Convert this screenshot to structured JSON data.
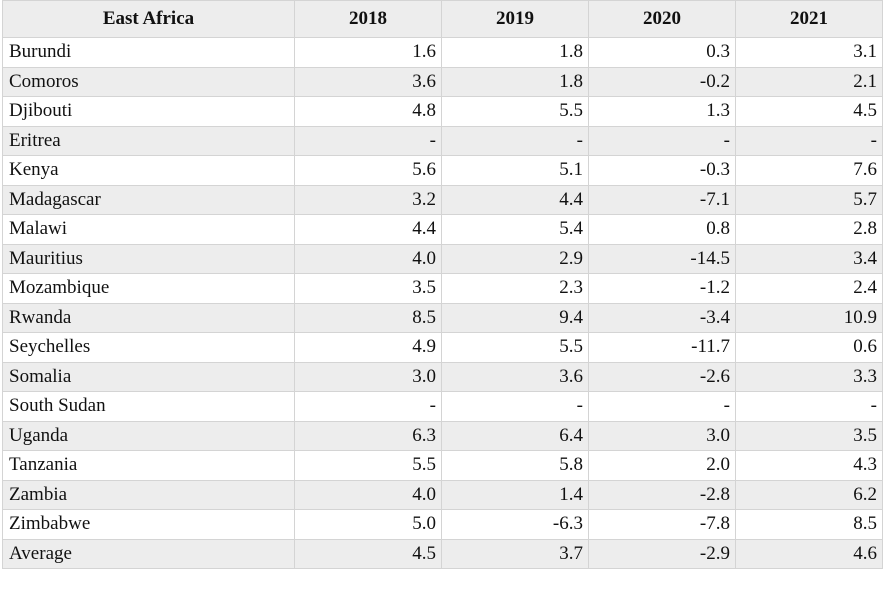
{
  "table": {
    "headers": [
      "East Africa",
      "2018",
      "2019",
      "2020",
      "2021"
    ],
    "rows": [
      {
        "country": "Burundi",
        "values": [
          "1.6",
          "1.8",
          "0.3",
          "3.1"
        ]
      },
      {
        "country": "Comoros",
        "values": [
          "3.6",
          "1.8",
          "-0.2",
          "2.1"
        ]
      },
      {
        "country": "Djibouti",
        "values": [
          "4.8",
          "5.5",
          "1.3",
          "4.5"
        ]
      },
      {
        "country": "Eritrea",
        "values": [
          "-",
          "-",
          "-",
          "-"
        ]
      },
      {
        "country": "Kenya",
        "values": [
          "5.6",
          "5.1",
          "-0.3",
          "7.6"
        ]
      },
      {
        "country": "Madagascar",
        "values": [
          "3.2",
          "4.4",
          "-7.1",
          "5.7"
        ]
      },
      {
        "country": "Malawi",
        "values": [
          "4.4",
          "5.4",
          "0.8",
          "2.8"
        ]
      },
      {
        "country": "Mauritius",
        "values": [
          "4.0",
          "2.9",
          "-14.5",
          "3.4"
        ]
      },
      {
        "country": "Mozambique",
        "values": [
          "3.5",
          "2.3",
          "-1.2",
          "2.4"
        ]
      },
      {
        "country": "Rwanda",
        "values": [
          "8.5",
          "9.4",
          "-3.4",
          "10.9"
        ]
      },
      {
        "country": "Seychelles",
        "values": [
          "4.9",
          "5.5",
          "-11.7",
          "0.6"
        ]
      },
      {
        "country": "Somalia",
        "values": [
          "3.0",
          "3.6",
          "-2.6",
          "3.3"
        ]
      },
      {
        "country": "South Sudan",
        "values": [
          "-",
          "-",
          "-",
          "-"
        ]
      },
      {
        "country": "Uganda",
        "values": [
          "6.3",
          "6.4",
          "3.0",
          "3.5"
        ]
      },
      {
        "country": "Tanzania",
        "values": [
          "5.5",
          "5.8",
          "2.0",
          "4.3"
        ]
      },
      {
        "country": "Zambia",
        "values": [
          "4.0",
          "1.4",
          "-2.8",
          "6.2"
        ]
      },
      {
        "country": "Zimbabwe",
        "values": [
          "5.0",
          "-6.3",
          "-7.8",
          "8.5"
        ]
      },
      {
        "country": "Average",
        "values": [
          "4.5",
          "3.7",
          "-2.9",
          "4.6"
        ]
      }
    ]
  },
  "colors": {
    "header_bg": "#ededed",
    "stripe_bg": "#ededed",
    "border": "#d4d4d4",
    "text": "#111111"
  }
}
